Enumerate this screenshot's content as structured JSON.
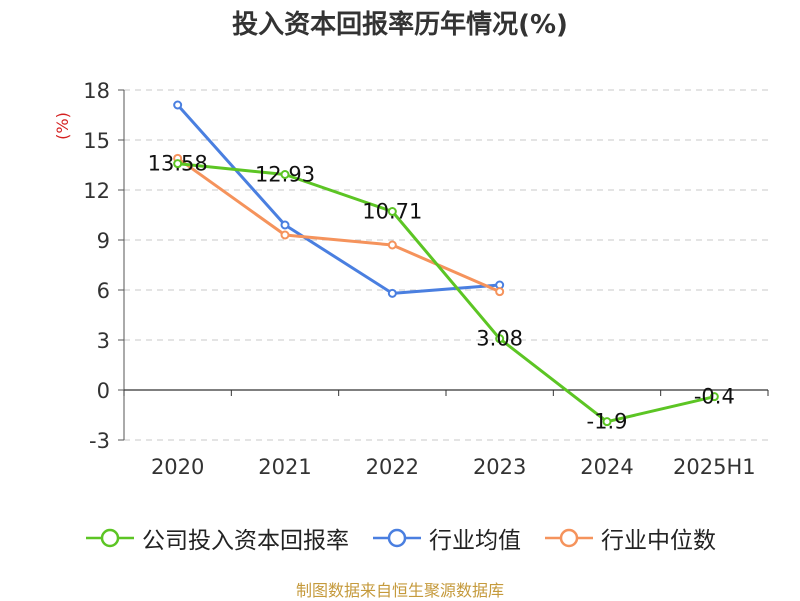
{
  "source_text": "制图数据来自恒生聚源数据库",
  "chart_data": {
    "type": "line",
    "title": "投入资本回报率历年情况(%)",
    "ylabel": "(%)",
    "categories": [
      "2020",
      "2021",
      "2022",
      "2023",
      "2024",
      "2025H1"
    ],
    "ylim": [
      -3,
      18
    ],
    "yticks": [
      -3,
      0,
      3,
      6,
      9,
      12,
      15,
      18
    ],
    "grid": true,
    "legend_position": "bottom",
    "series": [
      {
        "name": "公司投入资本回报率",
        "color": "#5cc524",
        "values": [
          13.58,
          12.93,
          10.71,
          3.08,
          -1.9,
          -0.4
        ],
        "labels": [
          "13.58",
          "12.93",
          "10.71",
          "3.08",
          "-1.9",
          "-0.4"
        ]
      },
      {
        "name": "行业均值",
        "color": "#4a7fe0",
        "values": [
          17.1,
          9.9,
          5.8,
          6.3,
          null,
          null
        ]
      },
      {
        "name": "行业中位数",
        "color": "#f5935c",
        "values": [
          13.9,
          9.3,
          8.7,
          5.9,
          null,
          null
        ]
      }
    ]
  }
}
